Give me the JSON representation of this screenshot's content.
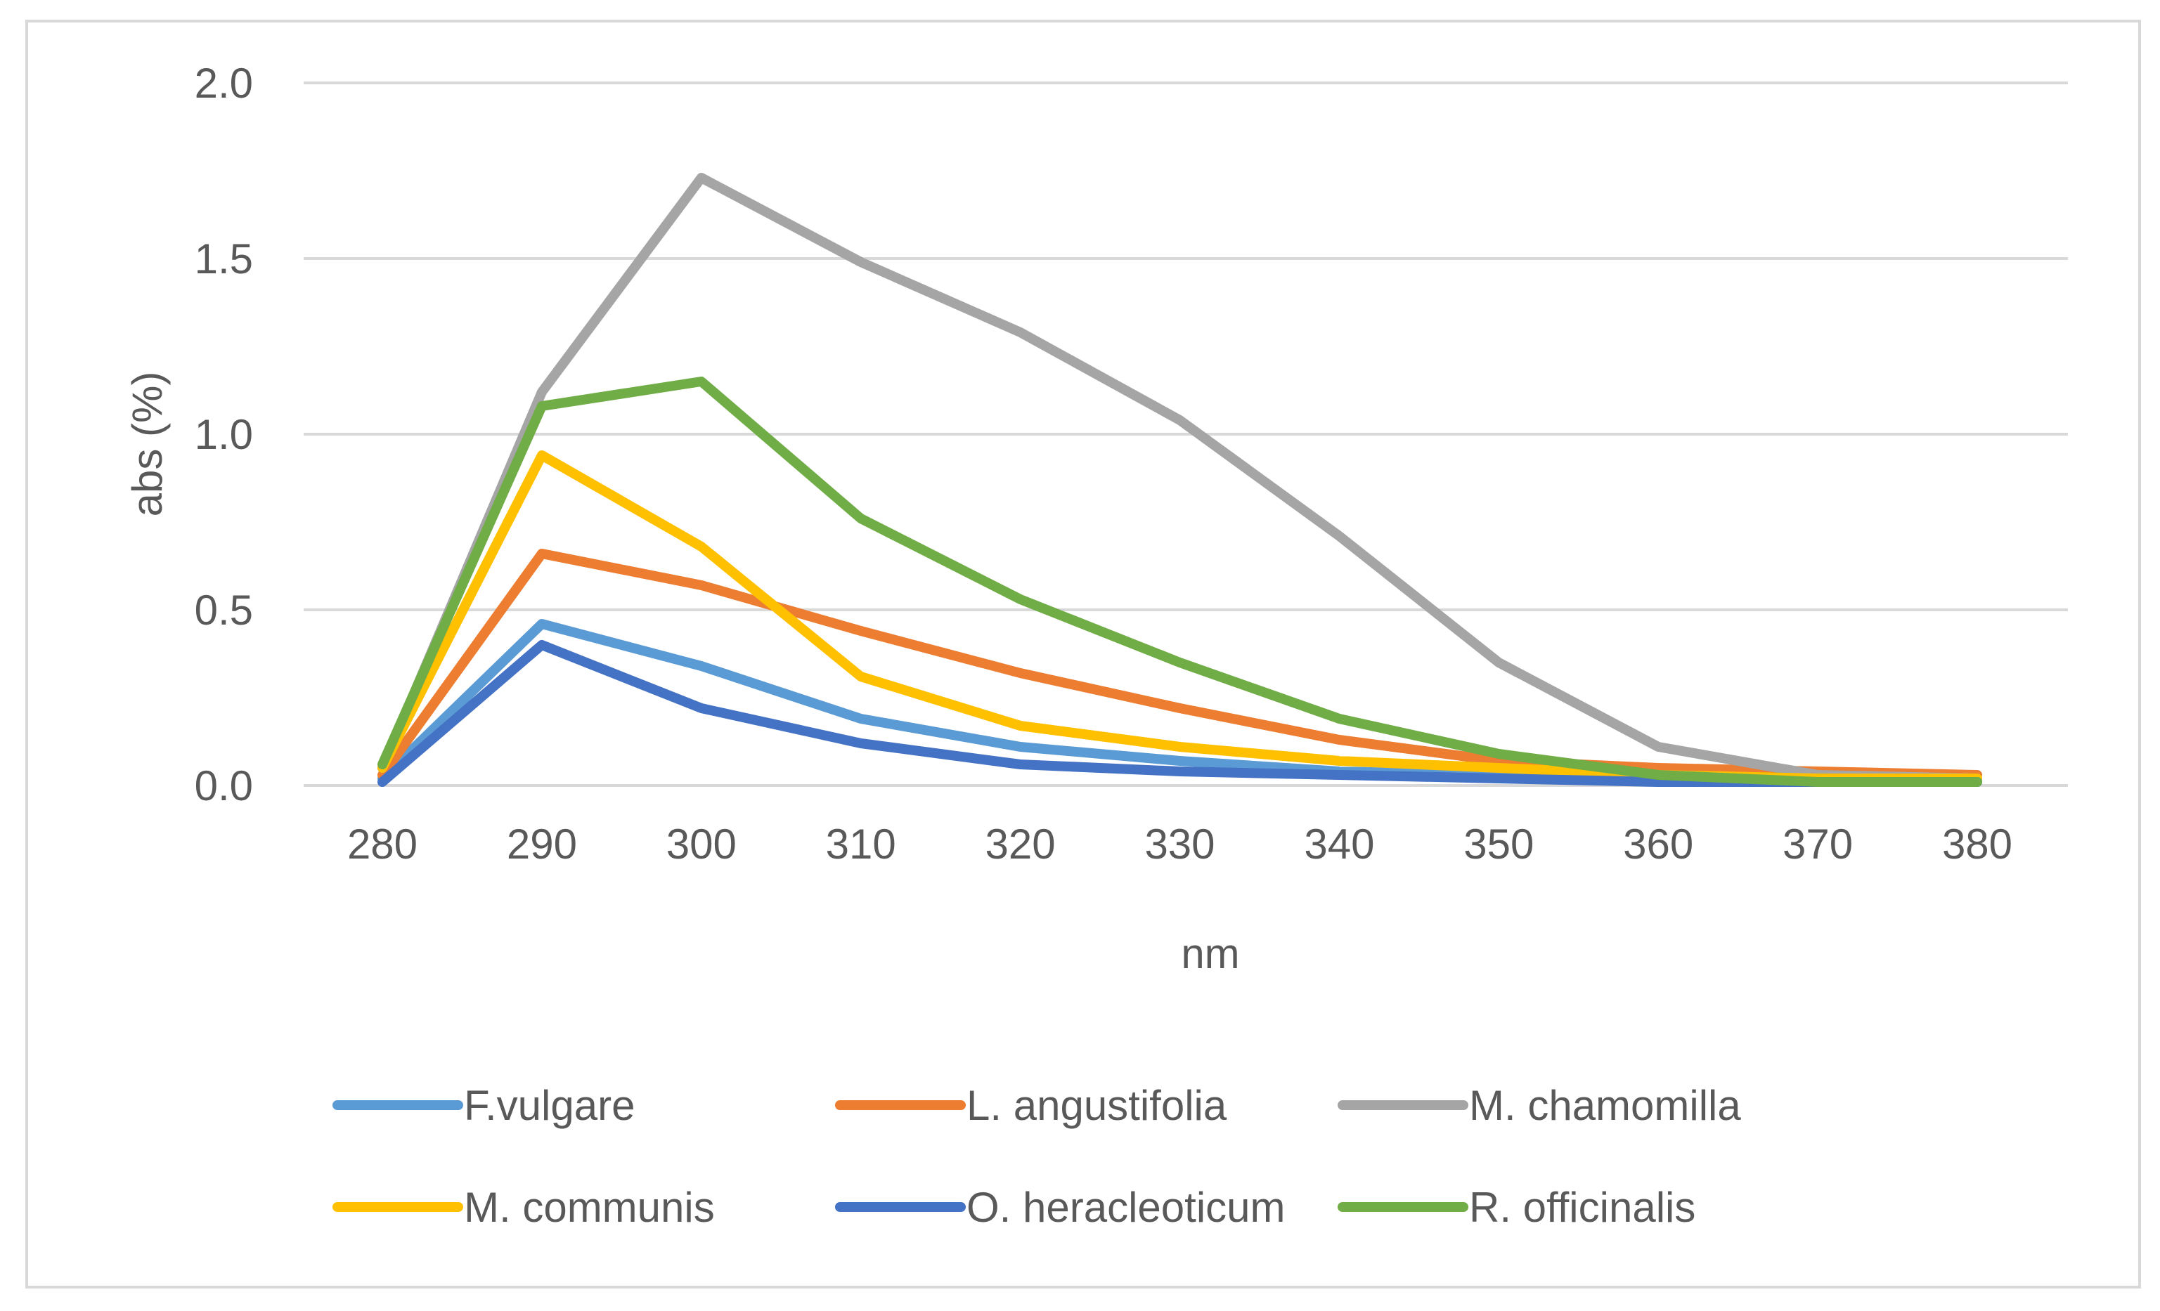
{
  "chart_data": {
    "type": "line",
    "title": "",
    "xlabel": "nm",
    "ylabel": "abs (%)",
    "x": [
      280,
      290,
      300,
      310,
      320,
      330,
      340,
      350,
      360,
      370,
      380
    ],
    "x_tick_labels": [
      "280",
      "290",
      "300",
      "310",
      "320",
      "330",
      "340",
      "350",
      "360",
      "370",
      "380"
    ],
    "ylim": [
      0,
      2.0
    ],
    "y_ticks": [
      0,
      0.5,
      1.0,
      1.5,
      2.0
    ],
    "y_tick_labels": [
      "0.0",
      "0.5",
      "1.0",
      "1.5",
      "2.0"
    ],
    "grid": true,
    "legend_position": "bottom",
    "series": [
      {
        "name": "F.vulgare",
        "color": "#5b9bd5",
        "values": [
          0.02,
          0.46,
          0.34,
          0.19,
          0.11,
          0.07,
          0.04,
          0.03,
          0.02,
          0.01,
          0.01
        ]
      },
      {
        "name": "L. angustifolia",
        "color": "#ed7d31",
        "values": [
          0.03,
          0.66,
          0.57,
          0.44,
          0.32,
          0.22,
          0.13,
          0.07,
          0.05,
          0.04,
          0.03
        ]
      },
      {
        "name": "M. chamomilla",
        "color": "#a5a5a5",
        "values": [
          0.05,
          1.12,
          1.73,
          1.49,
          1.29,
          1.04,
          0.71,
          0.35,
          0.11,
          0.03,
          0.02
        ]
      },
      {
        "name": "M. communis",
        "color": "#ffc000",
        "values": [
          0.05,
          0.94,
          0.68,
          0.31,
          0.17,
          0.11,
          0.07,
          0.05,
          0.03,
          0.02,
          0.02
        ]
      },
      {
        "name": "O. heracleoticum",
        "color": "#4472c4",
        "values": [
          0.01,
          0.4,
          0.22,
          0.12,
          0.06,
          0.04,
          0.03,
          0.02,
          0.01,
          0.01,
          0.01
        ]
      },
      {
        "name": "R. officinalis",
        "color": "#70ad47",
        "values": [
          0.06,
          1.08,
          1.15,
          0.76,
          0.53,
          0.35,
          0.19,
          0.09,
          0.03,
          0.01,
          0.01
        ]
      }
    ]
  }
}
